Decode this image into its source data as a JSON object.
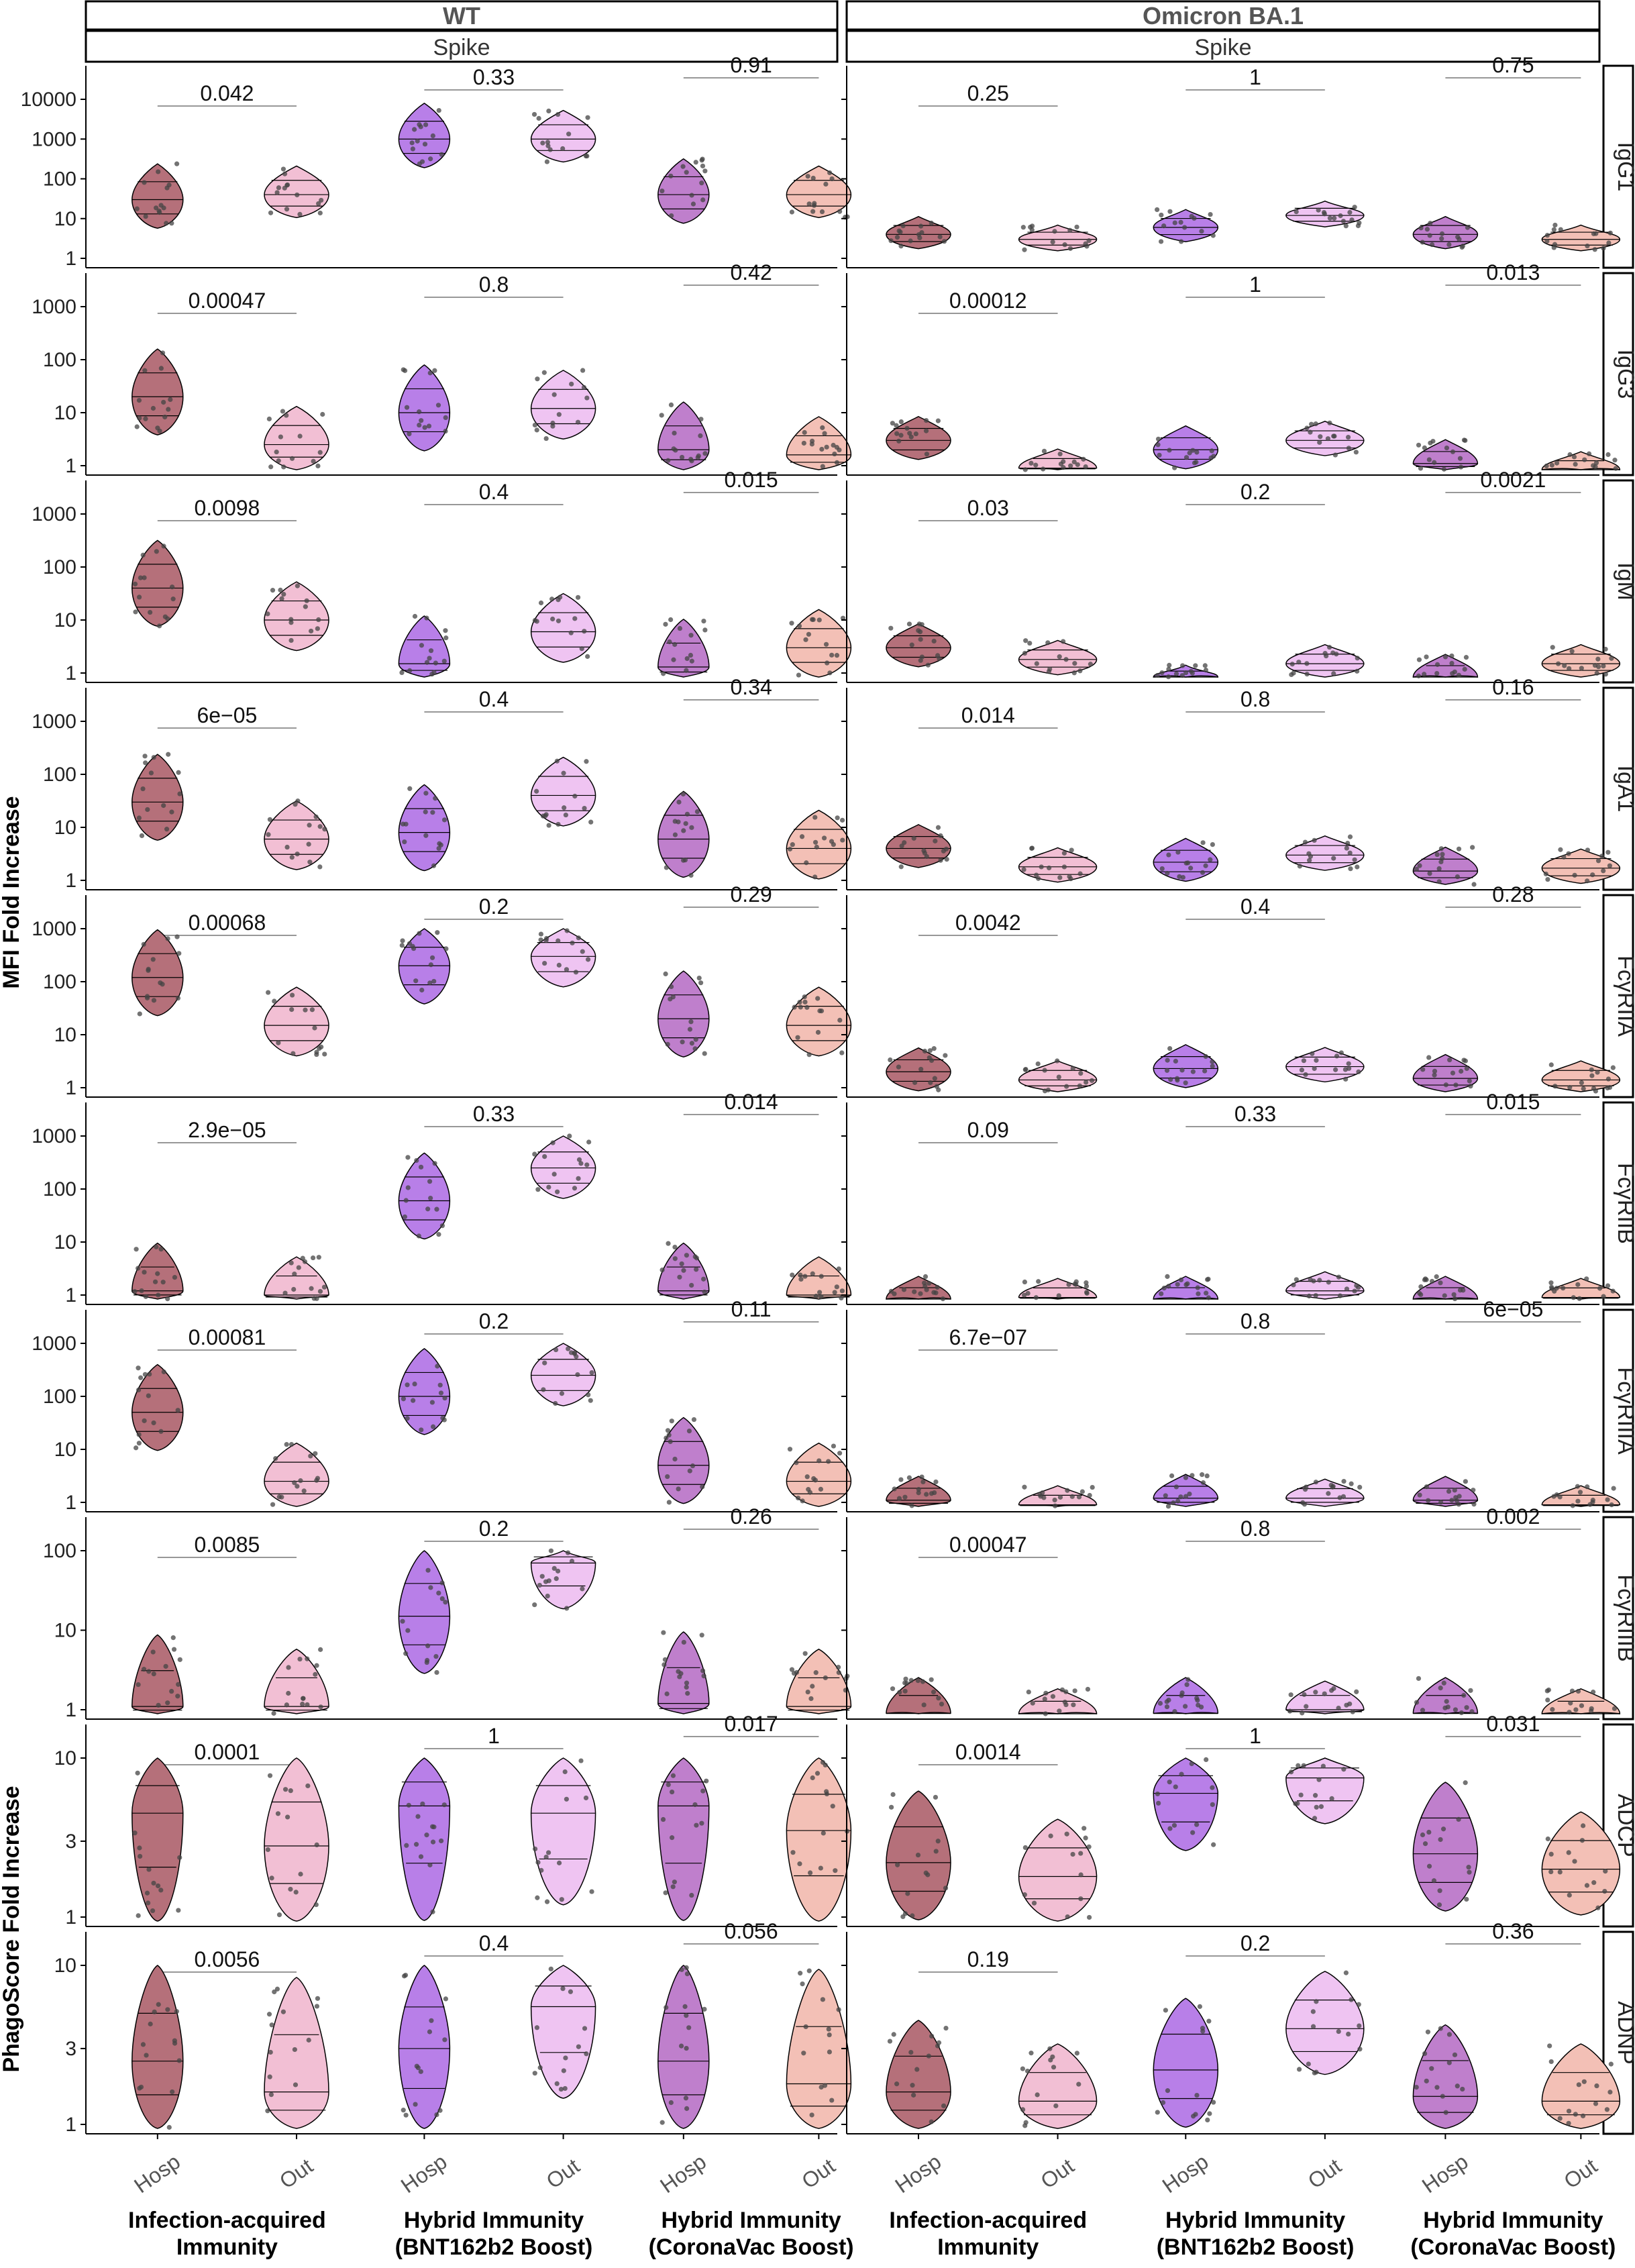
{
  "panels": [
    {
      "strip": "WT",
      "sub": "Spike"
    },
    {
      "strip": "Omicron BA.1",
      "sub": "Spike"
    }
  ],
  "y_axis_labels": [
    {
      "text": "MFI Fold Increase",
      "rows": [
        0,
        7
      ]
    },
    {
      "text": "PhagoScore Fold Increase",
      "rows": [
        8,
        9
      ]
    }
  ],
  "x_categories": [
    "Hosp",
    "Out",
    "Hosp",
    "Out",
    "Hosp",
    "Out"
  ],
  "groups": [
    {
      "line1": "Infection-acquired",
      "line2": "Immunity"
    },
    {
      "line1": "Hybrid Immunity",
      "line2": "(BNT162b2 Boost)"
    },
    {
      "line1": "Hybrid Immunity",
      "line2": "(CoronaVac Boost)"
    }
  ],
  "colors": {
    "hosp_infection": "#b5707a",
    "out_infection": "#f2bfd4",
    "hosp_bnt": "#b87fe8",
    "out_bnt": "#efc4f2",
    "hosp_corona": "#bf7fcc",
    "out_corona": "#f3c0b6",
    "strip_fill": "#ffffff",
    "outline": "#000000"
  },
  "chart_data": {
    "type": "violin",
    "scale": "log10",
    "rows": [
      {
        "label": "IgG1",
        "ylim": [
          1,
          10000
        ],
        "ticks": [
          "1",
          "10",
          "100",
          "1000",
          "10000"
        ],
        "pvalues": {
          "WT": [
            "0.042",
            "0.33",
            "0.91"
          ],
          "Omicron BA.1": [
            "0.25",
            "1",
            "0.75"
          ]
        },
        "medians": {
          "WT": [
            30,
            40,
            1000,
            1000,
            40,
            40
          ],
          "Omicron BA.1": [
            4,
            3,
            6,
            12,
            4,
            3
          ]
        }
      },
      {
        "label": "IgG3",
        "ylim": [
          1,
          1000
        ],
        "ticks": [
          "1",
          "10",
          "100",
          "1000"
        ],
        "pvalues": {
          "WT": [
            "0.00047",
            "0.8",
            "0.42"
          ],
          "Omicron BA.1": [
            "0.00012",
            "1",
            "0.013"
          ]
        },
        "medians": {
          "WT": [
            20,
            2.5,
            10,
            12,
            2,
            1.6
          ],
          "Omicron BA.1": [
            3,
            0.9,
            2,
            3,
            1.1,
            0.8
          ]
        }
      },
      {
        "label": "IgM",
        "ylim": [
          1,
          1000
        ],
        "ticks": [
          "1",
          "10",
          "100",
          "1000"
        ],
        "pvalues": {
          "WT": [
            "0.0098",
            "0.4",
            "0.015"
          ],
          "Omicron BA.1": [
            "0.03",
            "0.2",
            "0.0021"
          ]
        },
        "medians": {
          "WT": [
            40,
            10,
            1.5,
            6,
            1.3,
            3
          ],
          "Omicron BA.1": [
            3,
            1.8,
            0.5,
            1.5,
            0.8,
            1.5
          ]
        }
      },
      {
        "label": "IgA1",
        "ylim": [
          1,
          1000
        ],
        "ticks": [
          "1",
          "10",
          "100",
          "1000"
        ],
        "pvalues": {
          "WT": [
            "6e−05",
            "0.4",
            "0.34"
          ],
          "Omicron BA.1": [
            "0.014",
            "0.8",
            "0.16"
          ]
        },
        "medians": {
          "WT": [
            30,
            6,
            8,
            40,
            6,
            4
          ],
          "Omicron BA.1": [
            4,
            1.8,
            2.2,
            3,
            1.5,
            1.7
          ]
        }
      },
      {
        "label": "FcγRIIA",
        "ylim": [
          1,
          1000
        ],
        "ticks": [
          "1",
          "10",
          "100",
          "1000"
        ],
        "pvalues": {
          "WT": [
            "0.00068",
            "0.2",
            "0.29"
          ],
          "Omicron BA.1": [
            "0.0042",
            "0.4",
            "0.28"
          ]
        },
        "medians": {
          "WT": [
            120,
            15,
            200,
            300,
            20,
            15
          ],
          "Omicron BA.1": [
            2,
            1.4,
            2.3,
            2.5,
            1.5,
            1.4
          ]
        }
      },
      {
        "label": "FcγRIIB",
        "ylim": [
          1,
          1000
        ],
        "ticks": [
          "1",
          "10",
          "100",
          "1000"
        ],
        "pvalues": {
          "WT": [
            "2.9e−05",
            "0.33",
            "0.014"
          ],
          "Omicron BA.1": [
            "0.09",
            "0.33",
            "0.015"
          ]
        },
        "medians": {
          "WT": [
            1.2,
            1,
            60,
            250,
            1.2,
            1
          ],
          "Omicron BA.1": [
            0.8,
            0.9,
            0.8,
            1.2,
            0.8,
            0.9
          ]
        }
      },
      {
        "label": "FcγRIIIA",
        "ylim": [
          1,
          1000
        ],
        "ticks": [
          "1",
          "10",
          "100",
          "1000"
        ],
        "pvalues": {
          "WT": [
            "0.00081",
            "0.2",
            "0.11"
          ],
          "Omicron BA.1": [
            "6.7e−07",
            "0.8",
            "6e−05"
          ]
        },
        "medians": {
          "WT": [
            50,
            2.5,
            100,
            250,
            5,
            2.5
          ],
          "Omicron BA.1": [
            1.1,
            0.9,
            1.2,
            1.2,
            1.1,
            0.9
          ]
        }
      },
      {
        "label": "FcγRIIIB",
        "ylim": [
          1,
          100
        ],
        "ticks": [
          "1",
          "10",
          "100"
        ],
        "pvalues": {
          "WT": [
            "0.0085",
            "0.2",
            "0.26"
          ],
          "Omicron BA.1": [
            "0.00047",
            "0.8",
            "0.002"
          ]
        },
        "medians": {
          "WT": [
            1.1,
            1.1,
            15,
            70,
            1.2,
            1.1
          ],
          "Omicron BA.1": [
            0.9,
            0.8,
            0.9,
            1,
            0.9,
            0.8
          ]
        }
      },
      {
        "label": "ADCP",
        "ylim": [
          1,
          10
        ],
        "ticks": [
          "1",
          "3",
          "10"
        ],
        "pvalues": {
          "WT": [
            "0.0001",
            "1",
            "0.017"
          ],
          "Omicron BA.1": [
            "0.0014",
            "1",
            "0.031"
          ]
        },
        "medians": {
          "WT": [
            4.5,
            2.8,
            5,
            4.5,
            5,
            3.5
          ],
          "Omicron BA.1": [
            2.2,
            1.8,
            6,
            7.5,
            2.5,
            2
          ]
        }
      },
      {
        "label": "ADNP",
        "ylim": [
          1,
          10
        ],
        "ticks": [
          "1",
          "3",
          "10"
        ],
        "pvalues": {
          "WT": [
            "0.0056",
            "0.4",
            "0.056"
          ],
          "Omicron BA.1": [
            "0.19",
            "0.2",
            "0.36"
          ]
        },
        "medians": {
          "WT": [
            2.5,
            1.6,
            3,
            5.5,
            2.5,
            1.8
          ],
          "Omicron BA.1": [
            1.6,
            1.4,
            2.2,
            4,
            1.5,
            1.4
          ]
        }
      }
    ]
  }
}
